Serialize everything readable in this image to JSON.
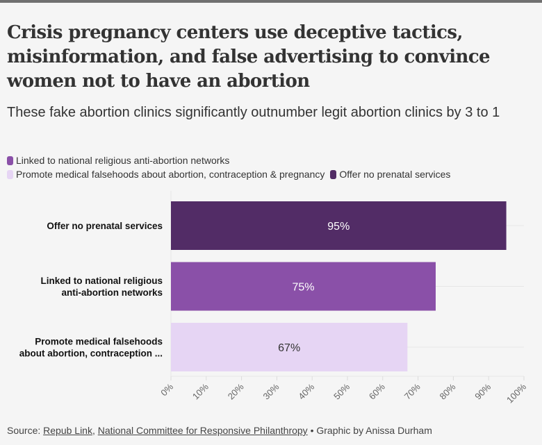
{
  "header": {
    "title": "Crisis pregnancy centers use deceptive tactics, misinformation, and false advertising to convince women not to have an abortion",
    "subtitle": "These fake abortion clinics significantly outnumber legit abortion clinics by 3 to 1"
  },
  "legend": [
    {
      "label": "Linked to national religious anti-abortion networks",
      "color": "#8a50a8"
    },
    {
      "label": "Promote medical falsehoods about abortion, contraception & pregnancy",
      "color": "#e6d5f4"
    },
    {
      "label": "Offer no prenatal services",
      "color": "#522c66"
    }
  ],
  "chart_data": {
    "type": "bar",
    "orientation": "horizontal",
    "title": "Crisis pregnancy centers use deceptive tactics, misinformation, and false advertising to convince women not to have an abortion",
    "subtitle": "These fake abortion clinics significantly outnumber legit abortion clinics by 3 to 1",
    "categories": [
      [
        "Offer no prenatal services"
      ],
      [
        "Linked to national religious",
        "anti-abortion networks"
      ],
      [
        "Promote medical falsehoods",
        "about abortion, contraception ..."
      ]
    ],
    "values": [
      95,
      75,
      67
    ],
    "data_labels": [
      "95%",
      "75%",
      "67%"
    ],
    "colors": [
      "#522c66",
      "#8a50a8",
      "#e6d5f4"
    ],
    "label_colors": [
      "#ffffff",
      "#ffffff",
      "#333333"
    ],
    "xlim": [
      0,
      100
    ],
    "xticks": [
      "0%",
      "10%",
      "20%",
      "30%",
      "40%",
      "50%",
      "60%",
      "70%",
      "80%",
      "90%",
      "100%"
    ],
    "xlabel": "",
    "ylabel": "",
    "grid": true,
    "legend_position": "top-left"
  },
  "source": {
    "prefix": "Source: ",
    "link1": "Repub Link",
    "sep": ", ",
    "link2": "National Committee for Responsive Philanthropy",
    "suffix": " • Graphic by Anissa Durham"
  }
}
